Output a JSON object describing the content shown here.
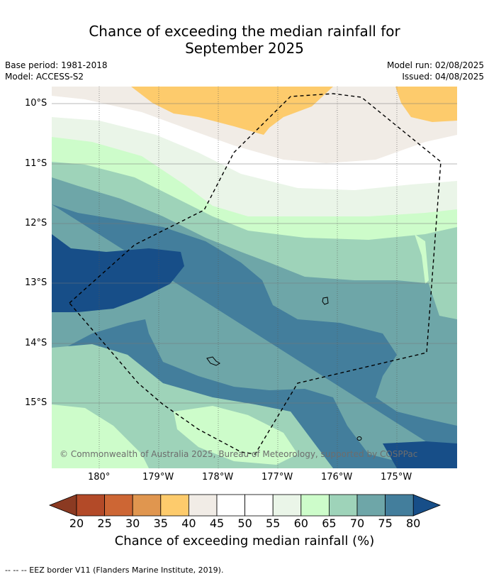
{
  "title_line1": "Chance of exceeding the median rainfall for",
  "title_line2": "September 2025",
  "base_period": "Base period: 1981-2018",
  "model": "Model: ACCESS-S2",
  "model_run": "Model run: 02/08/2025",
  "issued": "Issued: 04/08/2025",
  "lat_ticks": [
    "10°S",
    "11°S",
    "12°S",
    "13°S",
    "14°S",
    "15°S"
  ],
  "lon_ticks": [
    "180°",
    "179°W",
    "178°W",
    "177°W",
    "176°W",
    "175°W"
  ],
  "credit": "© Commonwealth of Australia 2025, Bureau of Meteorology, supported by COSPPac",
  "colorbar": {
    "labels": [
      "20",
      "25",
      "30",
      "35",
      "40",
      "45",
      "50",
      "55",
      "60",
      "65",
      "70",
      "75",
      "80"
    ],
    "colors": [
      "#8b3a22",
      "#b34a28",
      "#cd6634",
      "#e0964f",
      "#fdcb6c",
      "#f1ece6",
      "#ffffff",
      "#ffffff",
      "#eaf5e8",
      "#cdfcca",
      "#9ed3b9",
      "#6ea6a8",
      "#437e9c",
      "#174e88"
    ],
    "title": "Chance of exceeding median rainfall (%)"
  },
  "footnote": "--  --  -- EEZ border V11 (Flanders Marine Institute, 2019)."
}
